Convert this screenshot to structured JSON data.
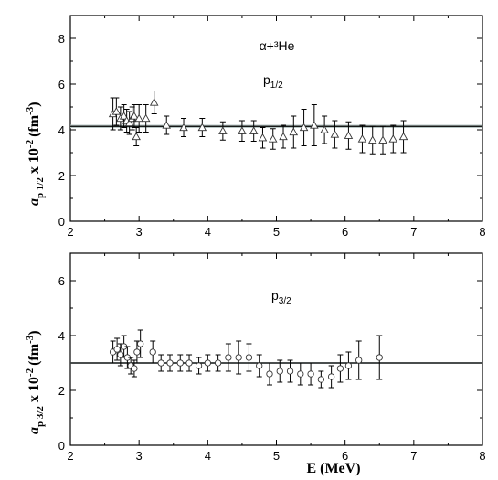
{
  "chart_data": [
    {
      "type": "scatter",
      "panel": "top",
      "xlim": [
        2,
        8
      ],
      "ylim": [
        0,
        9
      ],
      "x_ticks": [
        "2",
        "3",
        "4",
        "5",
        "6",
        "7",
        "8"
      ],
      "y_ticks": [
        "0",
        "2",
        "4",
        "6",
        "8"
      ],
      "ylabel_main": "a",
      "ylabel_sub": "p 1/2",
      "ylabel_rest": " x 10",
      "ylabel_exp": "-2",
      "ylabel_unit": "(fm",
      "ylabel_unit_exp": "-3",
      "ylabel_close": ")",
      "annotation_reaction": "α+³He",
      "annotation_wave_main": "p",
      "annotation_wave_sub": "1/2",
      "marker": "triangle",
      "fit_line_y": 4.15,
      "fit_band": [
        4.08,
        4.22
      ],
      "x": [
        2.62,
        2.67,
        2.73,
        2.78,
        2.82,
        2.86,
        2.9,
        2.93,
        2.96,
        3.0,
        3.1,
        3.22,
        3.4,
        3.65,
        3.92,
        4.22,
        4.5,
        4.67,
        4.8,
        4.95,
        5.1,
        5.25,
        5.4,
        5.55,
        5.7,
        5.85,
        6.05,
        6.25,
        6.4,
        6.55,
        6.7,
        6.85
      ],
      "y": [
        4.7,
        4.8,
        4.5,
        4.6,
        4.4,
        4.3,
        4.5,
        4.6,
        3.7,
        4.5,
        4.5,
        5.2,
        4.2,
        4.1,
        4.1,
        3.95,
        3.95,
        3.95,
        3.65,
        3.6,
        3.7,
        3.9,
        4.1,
        4.2,
        4.0,
        3.8,
        3.75,
        3.6,
        3.55,
        3.55,
        3.6,
        3.7
      ],
      "err": [
        0.7,
        0.6,
        0.5,
        0.5,
        0.5,
        0.5,
        0.5,
        0.5,
        0.4,
        0.6,
        0.6,
        0.5,
        0.4,
        0.4,
        0.4,
        0.4,
        0.45,
        0.45,
        0.45,
        0.45,
        0.5,
        0.7,
        0.8,
        0.9,
        0.6,
        0.6,
        0.6,
        0.6,
        0.6,
        0.6,
        0.6,
        0.7
      ]
    },
    {
      "type": "scatter",
      "panel": "bottom",
      "xlim": [
        2,
        8
      ],
      "ylim": [
        0,
        7
      ],
      "x_ticks": [
        "2",
        "3",
        "4",
        "5",
        "6",
        "7",
        "8"
      ],
      "y_ticks": [
        "0",
        "2",
        "4",
        "6"
      ],
      "xlabel": "E (MeV)",
      "ylabel_main": "a",
      "ylabel_sub": "p 3/2",
      "ylabel_rest": " x 10",
      "ylabel_exp": "-2",
      "ylabel_unit": "(fm",
      "ylabel_unit_exp": "-3",
      "ylabel_close": ")",
      "annotation_wave_main": "p",
      "annotation_wave_sub": "3/2",
      "marker": "circle",
      "fit_line_y": 3.0,
      "fit_band": [
        2.97,
        3.03
      ],
      "x": [
        2.62,
        2.68,
        2.73,
        2.78,
        2.83,
        2.88,
        2.93,
        2.97,
        3.02,
        3.2,
        3.32,
        3.45,
        3.6,
        3.73,
        3.87,
        4.0,
        4.15,
        4.3,
        4.45,
        4.6,
        4.75,
        4.9,
        5.05,
        5.2,
        5.35,
        5.5,
        5.65,
        5.8,
        5.93,
        6.05,
        6.2,
        6.5
      ],
      "y": [
        3.4,
        3.5,
        3.3,
        3.6,
        3.2,
        2.9,
        2.8,
        3.4,
        3.7,
        3.4,
        3.0,
        3.0,
        3.0,
        3.0,
        2.9,
        3.0,
        3.0,
        3.2,
        3.2,
        3.2,
        2.9,
        2.6,
        2.7,
        2.7,
        2.6,
        2.6,
        2.4,
        2.5,
        2.8,
        2.9,
        3.1,
        3.2
      ],
      "err": [
        0.4,
        0.4,
        0.4,
        0.4,
        0.4,
        0.3,
        0.3,
        0.4,
        0.5,
        0.4,
        0.3,
        0.3,
        0.3,
        0.3,
        0.3,
        0.3,
        0.3,
        0.5,
        0.6,
        0.5,
        0.4,
        0.4,
        0.4,
        0.4,
        0.4,
        0.4,
        0.3,
        0.4,
        0.5,
        0.5,
        0.7,
        0.8
      ]
    }
  ]
}
